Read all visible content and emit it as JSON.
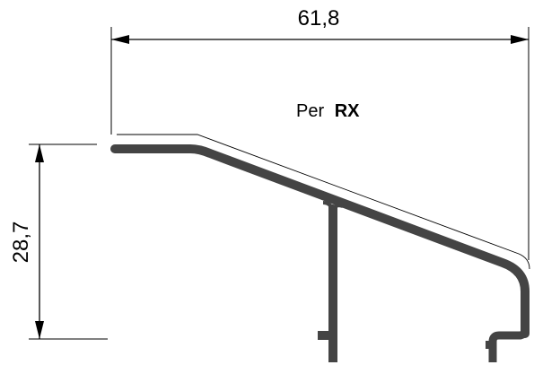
{
  "drawing": {
    "width_dimension": "61,8",
    "height_dimension": "28,7",
    "label_prefix": "Per",
    "label_model": "RX"
  },
  "colors": {
    "profile": "#444444",
    "lines": "#000000",
    "background": "#ffffff"
  }
}
